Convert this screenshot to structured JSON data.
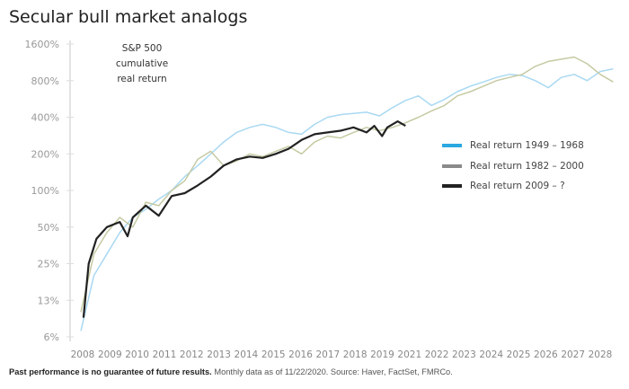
{
  "chart_data": {
    "type": "line",
    "title": "Secular bull market analogs",
    "ylabel": "S&P 500 cumulative real return",
    "yscale": "log",
    "y_ticks": [
      "1600%",
      "800%",
      "400%",
      "200%",
      "100%",
      "50%",
      "25%",
      "13%",
      "6%"
    ],
    "x_ticks": [
      "2008",
      "2009",
      "2010",
      "2011",
      "2012",
      "2013",
      "2014",
      "2015",
      "2016",
      "2017",
      "2018",
      "2019",
      "2021",
      "2022",
      "2023",
      "2024",
      "2025",
      "2026",
      "2027",
      "2028"
    ],
    "legend_position": "right",
    "series": [
      {
        "name": "Real return 1949 – 1968",
        "color": "#a9d9f2",
        "legend_color": "#2aa8e0",
        "x": [
          2008,
          2008.5,
          2009,
          2009.5,
          2010,
          2010.5,
          2011,
          2011.5,
          2012,
          2012.5,
          2013,
          2013.5,
          2014,
          2014.5,
          2015,
          2015.5,
          2016,
          2016.5,
          2017,
          2017.5,
          2018,
          2018.5,
          2019,
          2019.5,
          2020,
          2020.5,
          2021,
          2021.5,
          2022,
          2022.5,
          2023,
          2023.5,
          2024,
          2024.5,
          2025,
          2025.5,
          2026,
          2026.5,
          2027,
          2027.5,
          2028,
          2028.5
        ],
        "y": [
          7,
          20,
          30,
          45,
          60,
          70,
          85,
          100,
          130,
          160,
          200,
          250,
          300,
          330,
          350,
          330,
          300,
          290,
          350,
          400,
          420,
          430,
          440,
          410,
          480,
          550,
          600,
          500,
          560,
          650,
          720,
          780,
          850,
          900,
          880,
          800,
          700,
          850,
          900,
          800,
          950,
          1000
        ]
      },
      {
        "name": "Real return 1982 – 2000",
        "color": "#c6caa3",
        "legend_color": "#8a8a8a",
        "x": [
          2008,
          2008.5,
          2009,
          2009.5,
          2010,
          2010.5,
          2011,
          2011.5,
          2012,
          2012.5,
          2013,
          2013.5,
          2014,
          2014.5,
          2015,
          2015.5,
          2016,
          2016.5,
          2017,
          2017.5,
          2018,
          2018.5,
          2019,
          2019.5,
          2020,
          2020.5,
          2021,
          2021.5,
          2022,
          2022.5,
          2023,
          2023.5,
          2024,
          2024.5,
          2025,
          2025.5,
          2026,
          2026.5,
          2027,
          2027.5,
          2028,
          2028.5
        ],
        "y": [
          10,
          30,
          45,
          60,
          50,
          80,
          75,
          100,
          120,
          180,
          210,
          160,
          175,
          200,
          190,
          210,
          230,
          200,
          250,
          280,
          270,
          300,
          330,
          310,
          330,
          360,
          400,
          450,
          500,
          600,
          650,
          720,
          800,
          850,
          900,
          1050,
          1150,
          1200,
          1250,
          1100,
          900,
          780
        ]
      },
      {
        "name": "Real return 2009 – ?",
        "color": "#222222",
        "legend_color": "#222222",
        "x": [
          2008.1,
          2008.3,
          2008.6,
          2009,
          2009.5,
          2009.8,
          2010,
          2010.5,
          2011,
          2011.5,
          2012,
          2012.5,
          2013,
          2013.5,
          2014,
          2014.5,
          2015,
          2015.5,
          2016,
          2016.5,
          2017,
          2017.5,
          2018,
          2018.5,
          2019,
          2019.3,
          2019.6,
          2019.8,
          2020.2,
          2020.5
        ],
        "y": [
          9,
          25,
          40,
          50,
          55,
          42,
          60,
          75,
          62,
          90,
          95,
          110,
          130,
          160,
          180,
          190,
          185,
          200,
          220,
          260,
          290,
          300,
          310,
          330,
          300,
          340,
          280,
          330,
          370,
          340
        ]
      }
    ]
  },
  "footer": {
    "bold": "Past performance is no guarantee of future results.",
    "text": " Monthly data as of 11/22/2020. Source: Haver, FactSet, FMRCo."
  }
}
